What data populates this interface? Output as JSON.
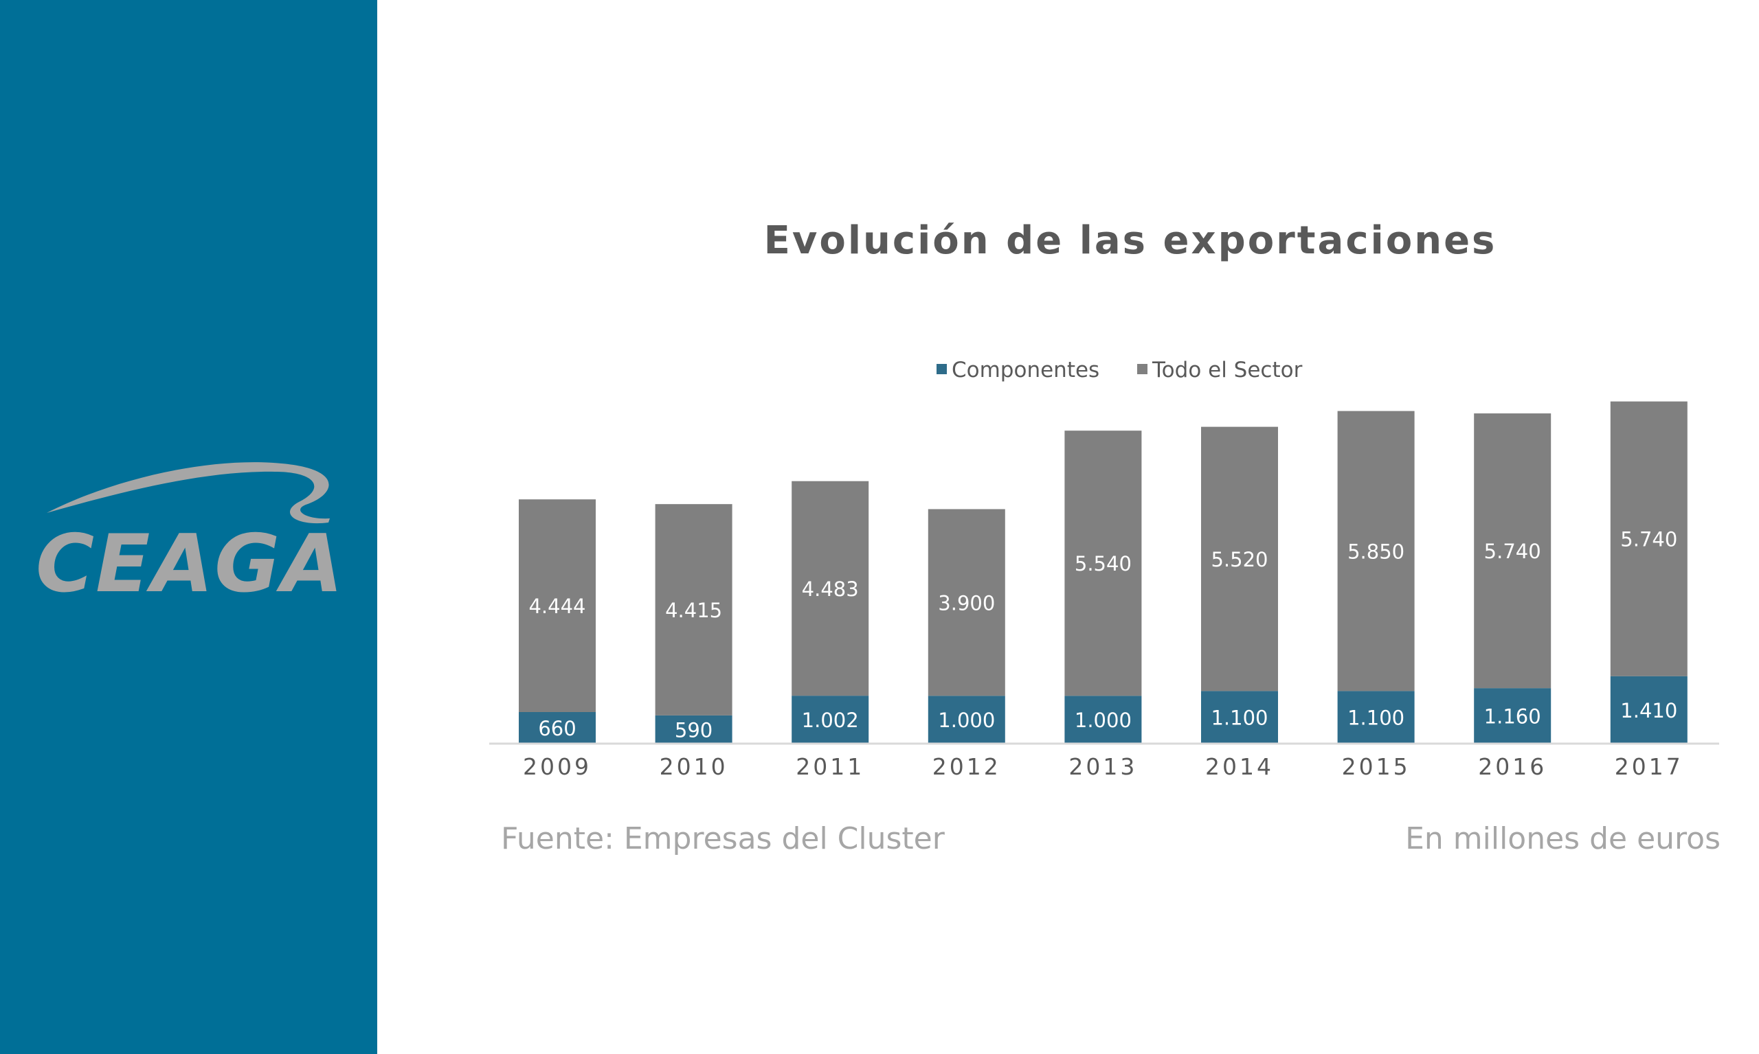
{
  "brand": {
    "logo_text": "CEAGA",
    "sidebar_color": "#006f97",
    "logo_color": "#a6a6a6"
  },
  "chart_data": {
    "type": "bar",
    "stacked": true,
    "title": "Evolución de las exportaciones",
    "categories": [
      "2009",
      "2010",
      "2011",
      "2012",
      "2013",
      "2014",
      "2015",
      "2016",
      "2017"
    ],
    "series": [
      {
        "name": "Componentes",
        "color": "#2e6c8a",
        "values": [
          660,
          590,
          1002,
          1000,
          1000,
          1100,
          1100,
          1160,
          1410
        ],
        "labels": [
          "660",
          "590",
          "1.002",
          "1.000",
          "1.000",
          "1.100",
          "1.100",
          "1.160",
          "1.410"
        ]
      },
      {
        "name": "Todo el Sector",
        "color": "#808080",
        "values": [
          4444,
          4415,
          4483,
          3900,
          5540,
          5520,
          5850,
          5740,
          5740
        ],
        "labels": [
          "4.444",
          "4.415",
          "4.483",
          "3.900",
          "5.540",
          "5.520",
          "5.850",
          "5.740",
          "5.740"
        ]
      }
    ],
    "legend_position": "top",
    "grid": false,
    "data_labels": true
  },
  "footer": {
    "source": "Fuente: Empresas del Cluster",
    "units": "En millones de euros"
  }
}
